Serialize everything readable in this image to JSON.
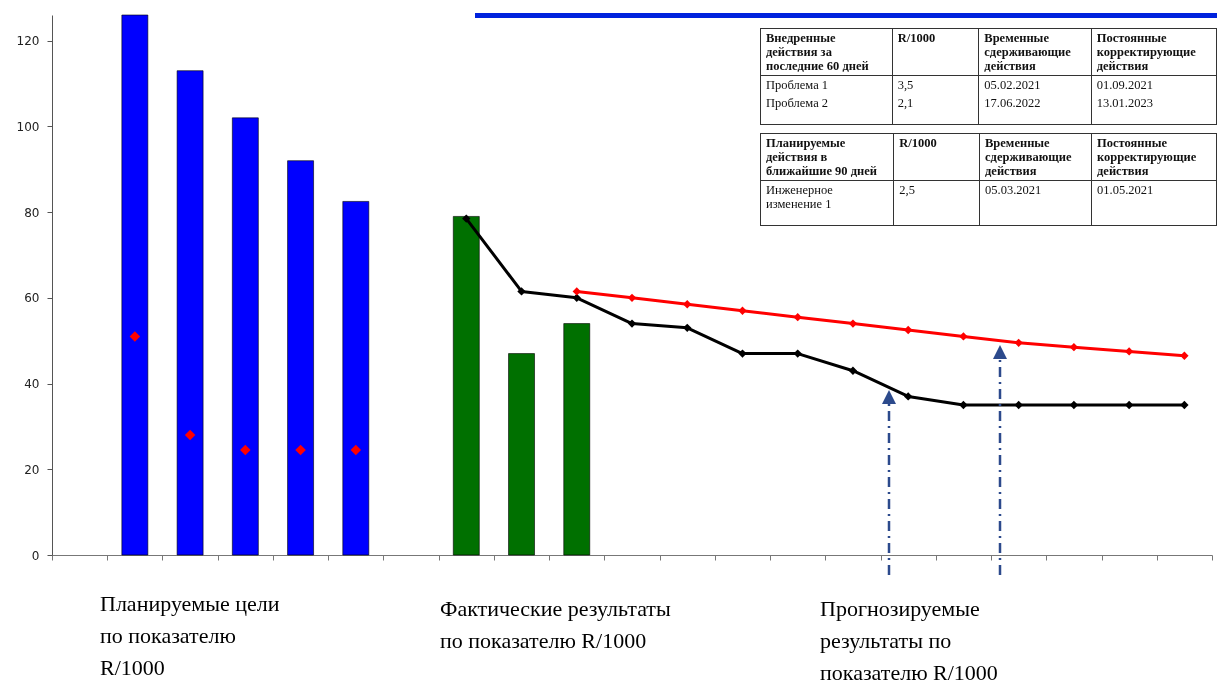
{
  "chart_data": {
    "type": "bar",
    "categories": [
      null,
      null,
      null,
      null,
      null,
      null,
      null,
      null,
      null,
      null,
      null,
      null,
      null,
      null,
      null,
      null,
      null,
      null,
      null,
      null,
      null
    ],
    "series": [
      {
        "color": "#0000ff",
        "values": [
          null,
          126,
          113,
          102,
          92,
          82.5,
          null,
          null,
          null,
          null,
          null,
          null,
          null,
          null,
          null,
          null,
          null,
          null,
          null,
          null,
          null
        ]
      },
      {
        "type": "scatter",
        "color": "#ff0000",
        "values": [
          null,
          51,
          28,
          24.5,
          24.5,
          24.5,
          null,
          null,
          null,
          null,
          null,
          null,
          null,
          null,
          null,
          null,
          null,
          null,
          null,
          null,
          null
        ]
      },
      {
        "color": "#007000",
        "values": [
          null,
          null,
          null,
          null,
          null,
          null,
          null,
          79,
          47,
          54,
          null,
          null,
          null,
          null,
          null,
          null,
          null,
          null,
          null,
          null,
          null
        ]
      },
      {
        "type": "line",
        "color": "#000000",
        "values": [
          null,
          null,
          null,
          null,
          null,
          null,
          null,
          78.5,
          61.5,
          60,
          54,
          53,
          47,
          47,
          43,
          37,
          35,
          35,
          35,
          35,
          35
        ]
      },
      {
        "type": "line",
        "color": "#ff0000",
        "values": [
          null,
          null,
          null,
          null,
          null,
          null,
          null,
          null,
          null,
          61.5,
          60,
          58.5,
          57,
          55.5,
          54,
          52.5,
          51,
          49.5,
          48.5,
          47.5,
          46.5
        ]
      }
    ],
    "ylim": [
      0,
      126
    ],
    "yticks": [
      0,
      20,
      40,
      60,
      80,
      100,
      120
    ],
    "grid": false,
    "tick_labels": "y",
    "marker": "diamond",
    "annotations": [
      "Внедренные действия за последние 60 дней",
      "R/1000",
      "Временные сдерживающие действия",
      "Постоянные корректирующие действия",
      "Проблема 1",
      "3,5",
      "05.02.2021",
      "01.09.2021",
      "Проблема 2",
      "2,1",
      "17.06.2022",
      "13.01.2023",
      "Планируемые действия в ближайшие 90 дней",
      "R/1000",
      "Временные сдерживающие действия",
      "Постоянные корректирующие действия",
      "Инженерное изменение 1",
      "2,5",
      "05.03.2021",
      "01.05.2021",
      "Планируемые цели по показателю R/1000",
      "Фактические результаты по показателю R/1000",
      "Прогнозируемые результаты по показателю R/1000"
    ]
  }
}
